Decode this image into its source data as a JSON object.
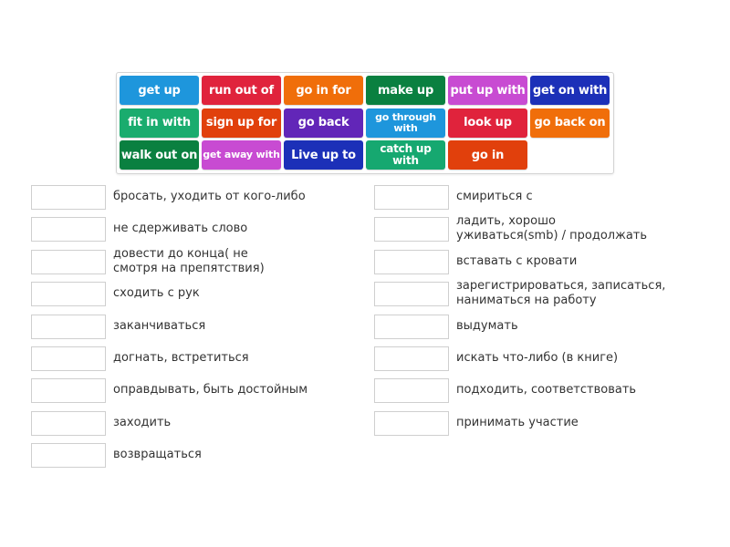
{
  "colors": {
    "blue": "#1e96dc",
    "red": "#e0233c",
    "orange": "#f06e0a",
    "dark_green": "#0a8040",
    "magenta": "#c84bd2",
    "navy": "#1c30b8",
    "teal": "#1aac6e",
    "red_orange": "#e1400c",
    "purple": "#6226b8",
    "green": "#16a870"
  },
  "word_bank": [
    {
      "label": "get up",
      "color": "#1e96dc",
      "row": 0,
      "col": 0,
      "size": "l"
    },
    {
      "label": "run out of",
      "color": "#e0233c",
      "row": 0,
      "col": 1,
      "size": "l"
    },
    {
      "label": "go in for",
      "color": "#f06e0a",
      "row": 0,
      "col": 2,
      "size": "l"
    },
    {
      "label": "make up",
      "color": "#0a8040",
      "row": 0,
      "col": 3,
      "size": "l"
    },
    {
      "label": "put up with",
      "color": "#c84bd2",
      "row": 0,
      "col": 4,
      "size": "l"
    },
    {
      "label": "get on with",
      "color": "#1c30b8",
      "row": 0,
      "col": 5,
      "size": "l"
    },
    {
      "label": "fit in with",
      "color": "#1aac6e",
      "row": 1,
      "col": 0,
      "size": "l"
    },
    {
      "label": "sign up for",
      "color": "#e1400c",
      "row": 1,
      "col": 1,
      "size": "l"
    },
    {
      "label": "go back",
      "color": "#6226b8",
      "row": 1,
      "col": 2,
      "size": "l"
    },
    {
      "label": "go through with",
      "color": "#1e96dc",
      "row": 1,
      "col": 3,
      "size": "s"
    },
    {
      "label": "look up",
      "color": "#e0233c",
      "row": 1,
      "col": 4,
      "size": "l"
    },
    {
      "label": "go back on",
      "color": "#f06e0a",
      "row": 1,
      "col": 5,
      "size": "l"
    },
    {
      "label": "walk out on",
      "color": "#0a8040",
      "row": 2,
      "col": 0,
      "size": "l"
    },
    {
      "label": "get away with",
      "color": "#c84bd2",
      "row": 2,
      "col": 1,
      "size": "s"
    },
    {
      "label": "Live up to",
      "color": "#1c30b8",
      "row": 2,
      "col": 2,
      "size": "l"
    },
    {
      "label": "catch up with",
      "color": "#16a870",
      "row": 2,
      "col": 3,
      "size": "m"
    },
    {
      "label": "go in",
      "color": "#e1400c",
      "row": 2,
      "col": 4,
      "size": "l"
    }
  ],
  "definitions_left": [
    {
      "text": "бросать, уходить от кого-либо",
      "lines": 1
    },
    {
      "text": "не сдерживать слово",
      "lines": 1
    },
    {
      "text": "довести до конца( не\nсмотря на препятствия)",
      "lines": 2
    },
    {
      "text": "сходить с рук",
      "lines": 1
    },
    {
      "text": "заканчиваться",
      "lines": 1
    },
    {
      "text": "догнать, встретиться",
      "lines": 1
    },
    {
      "text": "оправдывать, быть достойным",
      "lines": 1
    },
    {
      "text": "заходить",
      "lines": 1
    },
    {
      "text": "возвращаться",
      "lines": 1
    }
  ],
  "definitions_right": [
    {
      "text": "смириться с",
      "lines": 1
    },
    {
      "text": "ладить, хорошо\nуживаться(smb) / продолжать",
      "lines": 2
    },
    {
      "text": "вставать с кровати",
      "lines": 1
    },
    {
      "text": "зарегистрироваться, записаться,\nнаниматься на работу",
      "lines": 2
    },
    {
      "text": "выдумать",
      "lines": 1
    },
    {
      "text": "искать что-либо (в книге)",
      "lines": 1
    },
    {
      "text": "подходить, соответствовать",
      "lines": 1
    },
    {
      "text": "принимать участие",
      "lines": 1
    }
  ]
}
